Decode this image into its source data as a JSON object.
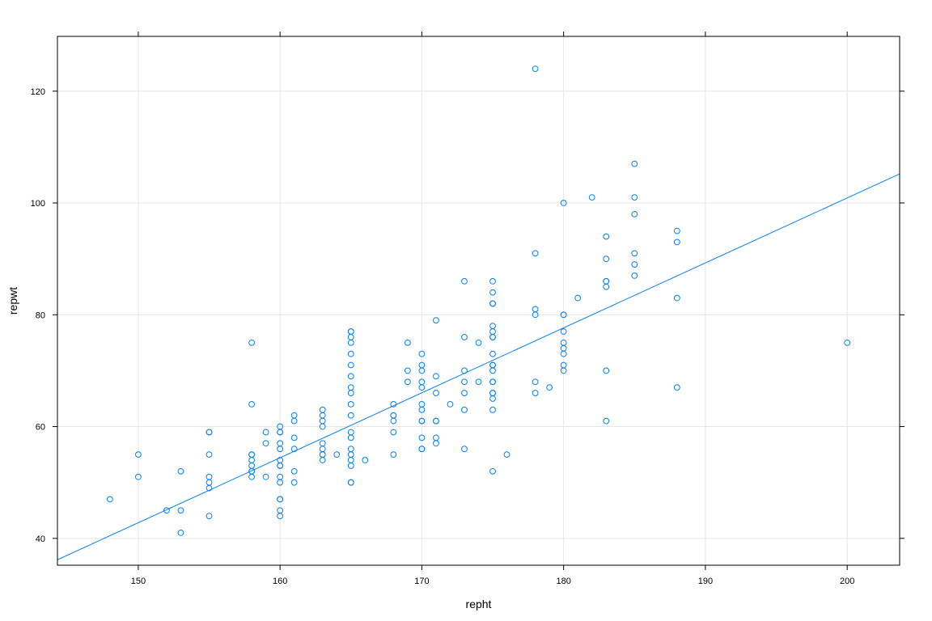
{
  "chart_data": {
    "type": "scatter",
    "xlabel": "repht",
    "ylabel": "repwt",
    "xlim": [
      144.3,
      203.7
    ],
    "ylim": [
      35.2,
      129.8
    ],
    "x_ticks": [
      150,
      160,
      170,
      180,
      190,
      200
    ],
    "y_ticks": [
      40,
      60,
      80,
      100,
      120
    ],
    "x_tick_labels": [
      "150",
      "160",
      "170",
      "180",
      "190",
      "200"
    ],
    "y_tick_labels": [
      "40",
      "60",
      "80",
      "100",
      "120"
    ],
    "grid": true,
    "point_color": "#0080ff",
    "line_color": "#0080ff",
    "grid_color": "#e6e6e6",
    "fit_line": {
      "intercept": -131.5,
      "slope": 1.162
    },
    "points": [
      [
        148,
        47
      ],
      [
        150,
        55
      ],
      [
        150,
        51
      ],
      [
        152,
        45
      ],
      [
        153,
        52
      ],
      [
        153,
        45
      ],
      [
        153,
        41
      ],
      [
        155,
        59
      ],
      [
        155,
        59
      ],
      [
        155,
        55
      ],
      [
        155,
        51
      ],
      [
        155,
        50
      ],
      [
        155,
        49
      ],
      [
        155,
        44
      ],
      [
        158,
        75
      ],
      [
        158,
        64
      ],
      [
        158,
        55
      ],
      [
        158,
        55
      ],
      [
        158,
        54
      ],
      [
        158,
        53
      ],
      [
        158,
        52
      ],
      [
        158,
        51
      ],
      [
        158,
        52
      ],
      [
        159,
        59
      ],
      [
        159,
        57
      ],
      [
        159,
        51
      ],
      [
        160,
        60
      ],
      [
        160,
        59
      ],
      [
        160,
        59
      ],
      [
        160,
        57
      ],
      [
        160,
        56
      ],
      [
        160,
        54
      ],
      [
        160,
        53
      ],
      [
        160,
        53
      ],
      [
        160,
        51
      ],
      [
        160,
        50
      ],
      [
        160,
        47
      ],
      [
        160,
        47
      ],
      [
        160,
        45
      ],
      [
        160,
        44
      ],
      [
        161,
        62
      ],
      [
        161,
        61
      ],
      [
        161,
        58
      ],
      [
        161,
        56
      ],
      [
        161,
        52
      ],
      [
        161,
        50
      ],
      [
        163,
        63
      ],
      [
        163,
        62
      ],
      [
        163,
        61
      ],
      [
        163,
        60
      ],
      [
        163,
        57
      ],
      [
        163,
        56
      ],
      [
        163,
        55
      ],
      [
        163,
        55
      ],
      [
        163,
        54
      ],
      [
        164,
        55
      ],
      [
        165,
        77
      ],
      [
        165,
        77
      ],
      [
        165,
        76
      ],
      [
        165,
        75
      ],
      [
        165,
        73
      ],
      [
        165,
        71
      ],
      [
        165,
        69
      ],
      [
        165,
        67
      ],
      [
        165,
        66
      ],
      [
        165,
        64
      ],
      [
        165,
        62
      ],
      [
        165,
        59
      ],
      [
        165,
        58
      ],
      [
        165,
        56
      ],
      [
        165,
        55
      ],
      [
        165,
        54
      ],
      [
        165,
        53
      ],
      [
        165,
        50
      ],
      [
        165,
        50
      ],
      [
        166,
        54
      ],
      [
        168,
        64
      ],
      [
        168,
        62
      ],
      [
        168,
        62
      ],
      [
        168,
        61
      ],
      [
        168,
        59
      ],
      [
        168,
        55
      ],
      [
        169,
        75
      ],
      [
        169,
        70
      ],
      [
        169,
        68
      ],
      [
        170,
        73
      ],
      [
        170,
        71
      ],
      [
        170,
        70
      ],
      [
        170,
        68
      ],
      [
        170,
        67
      ],
      [
        170,
        64
      ],
      [
        170,
        63
      ],
      [
        170,
        61
      ],
      [
        170,
        61
      ],
      [
        170,
        58
      ],
      [
        170,
        56
      ],
      [
        170,
        56
      ],
      [
        171,
        79
      ],
      [
        171,
        69
      ],
      [
        171,
        66
      ],
      [
        171,
        61
      ],
      [
        171,
        61
      ],
      [
        171,
        58
      ],
      [
        171,
        57
      ],
      [
        172,
        64
      ],
      [
        173,
        86
      ],
      [
        173,
        76
      ],
      [
        173,
        70
      ],
      [
        173,
        68
      ],
      [
        173,
        66
      ],
      [
        173,
        63
      ],
      [
        173,
        56
      ],
      [
        174,
        75
      ],
      [
        174,
        68
      ],
      [
        175,
        86
      ],
      [
        175,
        84
      ],
      [
        175,
        82
      ],
      [
        175,
        82
      ],
      [
        175,
        78
      ],
      [
        175,
        77
      ],
      [
        175,
        76
      ],
      [
        175,
        76
      ],
      [
        175,
        73
      ],
      [
        175,
        71
      ],
      [
        175,
        71
      ],
      [
        175,
        70
      ],
      [
        175,
        68
      ],
      [
        175,
        68
      ],
      [
        175,
        66
      ],
      [
        175,
        66
      ],
      [
        175,
        65
      ],
      [
        175,
        63
      ],
      [
        175,
        52
      ],
      [
        176,
        55
      ],
      [
        178,
        124
      ],
      [
        178,
        91
      ],
      [
        178,
        81
      ],
      [
        178,
        80
      ],
      [
        178,
        68
      ],
      [
        178,
        66
      ],
      [
        179,
        67
      ],
      [
        180,
        100
      ],
      [
        180,
        80
      ],
      [
        180,
        80
      ],
      [
        180,
        77
      ],
      [
        180,
        75
      ],
      [
        180,
        74
      ],
      [
        180,
        73
      ],
      [
        180,
        71
      ],
      [
        180,
        70
      ],
      [
        181,
        83
      ],
      [
        182,
        101
      ],
      [
        183,
        94
      ],
      [
        183,
        90
      ],
      [
        183,
        86
      ],
      [
        183,
        86
      ],
      [
        183,
        85
      ],
      [
        183,
        70
      ],
      [
        183,
        61
      ],
      [
        185,
        107
      ],
      [
        185,
        101
      ],
      [
        185,
        98
      ],
      [
        185,
        91
      ],
      [
        185,
        89
      ],
      [
        185,
        87
      ],
      [
        188,
        95
      ],
      [
        188,
        93
      ],
      [
        188,
        83
      ],
      [
        188,
        67
      ],
      [
        200,
        75
      ]
    ]
  }
}
